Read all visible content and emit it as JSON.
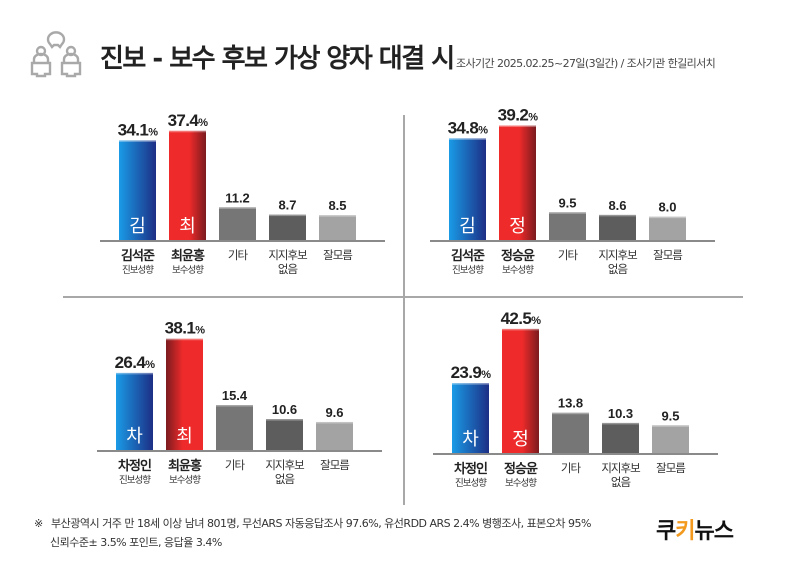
{
  "header": {
    "title": "진보 - 보수 후보 가상 양자 대결 시",
    "subtitle": "조사기간 2025.02.25~27일(3일간) / 조사기관  한길리서치",
    "icon": "people-discussion-icon"
  },
  "colors": {
    "progressive_light": "#1a9be6",
    "progressive_dark": "#1d2f86",
    "conservative_light": "#ee2a2a",
    "conservative_dark": "#7a1b1f",
    "other": "#767676",
    "none": "#5d5d5d",
    "dontknow": "#a3a3a3",
    "axis": "#8a8a8a",
    "brand_accent": "#f39a1e"
  },
  "chart_data": [
    {
      "type": "bar",
      "position": "top-left",
      "categories": [
        "김석준",
        "최윤홍",
        "기타",
        "지지후보 없음",
        "잘모름"
      ],
      "category_lines": [
        [
          "김석준",
          "진보성향"
        ],
        [
          "최윤홍",
          "보수성향"
        ],
        [
          "기타"
        ],
        [
          "지지후보",
          "없음"
        ],
        [
          "잘모름"
        ]
      ],
      "bar_initials": [
        "김",
        "최",
        "",
        "",
        ""
      ],
      "values": [
        34.1,
        37.4,
        11.2,
        8.7,
        8.5
      ],
      "value_labels": [
        "34.1",
        "37.4",
        "11.2",
        "8.7",
        "8.5"
      ],
      "unit": "%",
      "kinds": [
        "progressive",
        "conservative",
        "other",
        "none",
        "dontknow"
      ]
    },
    {
      "type": "bar",
      "position": "top-right",
      "categories": [
        "김석준",
        "정승윤",
        "기타",
        "지지후보 없음",
        "잘모름"
      ],
      "category_lines": [
        [
          "김석준",
          "진보성향"
        ],
        [
          "정승윤",
          "보수성향"
        ],
        [
          "기타"
        ],
        [
          "지지후보",
          "없음"
        ],
        [
          "잘모름"
        ]
      ],
      "bar_initials": [
        "김",
        "정",
        "",
        "",
        ""
      ],
      "values": [
        34.8,
        39.2,
        9.5,
        8.6,
        8.0
      ],
      "value_labels": [
        "34.8",
        "39.2",
        "9.5",
        "8.6",
        "8.0"
      ],
      "unit": "%",
      "kinds": [
        "progressive",
        "conservative",
        "other",
        "none",
        "dontknow"
      ]
    },
    {
      "type": "bar",
      "position": "bottom-left",
      "categories": [
        "차정인",
        "최윤홍",
        "기타",
        "지지후보 없음",
        "잘모름"
      ],
      "category_lines": [
        [
          "차정인",
          "진보성향"
        ],
        [
          "최윤홍",
          "보수성향"
        ],
        [
          "기타"
        ],
        [
          "지지후보",
          "없음"
        ],
        [
          "잘모름"
        ]
      ],
      "bar_initials": [
        "차",
        "최",
        "",
        "",
        ""
      ],
      "values": [
        26.4,
        38.1,
        15.4,
        10.6,
        9.6
      ],
      "value_labels": [
        "26.4",
        "38.1",
        "15.4",
        "10.6",
        "9.6"
      ],
      "unit": "%",
      "kinds": [
        "progressive",
        "conservative-rev",
        "other",
        "none",
        "dontknow"
      ]
    },
    {
      "type": "bar",
      "position": "bottom-right",
      "categories": [
        "차정인",
        "정승윤",
        "기타",
        "지지후보 없음",
        "잘모름"
      ],
      "category_lines": [
        [
          "차정인",
          "진보성향"
        ],
        [
          "정승윤",
          "보수성향"
        ],
        [
          "기타"
        ],
        [
          "지지후보",
          "없음"
        ],
        [
          "잘모름"
        ]
      ],
      "bar_initials": [
        "차",
        "정",
        "",
        "",
        ""
      ],
      "values": [
        23.9,
        42.5,
        13.8,
        10.3,
        9.5
      ],
      "value_labels": [
        "23.9",
        "42.5",
        "13.8",
        "10.3",
        "9.5"
      ],
      "unit": "%",
      "kinds": [
        "progressive",
        "conservative",
        "other",
        "none",
        "dontknow"
      ]
    }
  ],
  "footer": {
    "mark": "※",
    "line1": "부산광역시 거주 만 18세 이상 남녀 801명, 무선ARS 자동응답조사 97.6%, 유선RDD ARS 2.4% 병행조사, 표본오차 95%",
    "line2": "신뢰수준± 3.5% 포인트, 응답율 3.4%"
  },
  "brand": {
    "part1": "쿠",
    "part2": "키",
    "part3": "뉴스"
  }
}
